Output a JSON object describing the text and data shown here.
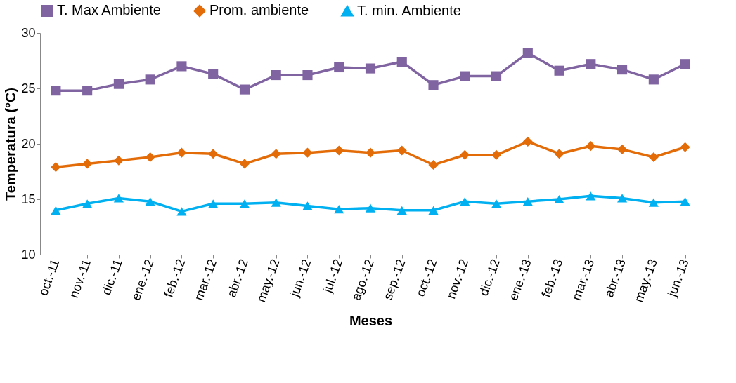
{
  "chart_data": {
    "type": "line",
    "xlabel": "Meses",
    "ylabel": "Temperatura (°C)",
    "categories": [
      "oct.-11",
      "nov.-11",
      "dic.-11",
      "ene.-12",
      "feb.-12",
      "mar.-12",
      "abr.-12",
      "may.-12",
      "jun.-12",
      "jul.-12",
      "ago.-12",
      "sep.-12",
      "oct.-12",
      "nov.-12",
      "dic.-12",
      "ene.-13",
      "feb.-13",
      "mar.-13",
      "abr.-13",
      "may.-13",
      "jun.-13"
    ],
    "series": [
      {
        "name": "T. Max Ambiente",
        "color": "#8064a2",
        "marker": "square",
        "values": [
          24.8,
          24.8,
          25.4,
          25.8,
          27.0,
          26.3,
          24.9,
          26.2,
          26.2,
          26.9,
          26.8,
          27.4,
          25.3,
          26.1,
          26.1,
          28.2,
          26.6,
          27.2,
          26.7,
          25.8,
          27.2
        ]
      },
      {
        "name": "Prom. ambiente",
        "color": "#e36c09",
        "marker": "diamond",
        "values": [
          17.9,
          18.2,
          18.5,
          18.8,
          19.2,
          19.1,
          18.2,
          19.1,
          19.2,
          19.4,
          19.2,
          19.4,
          18.1,
          19.0,
          19.0,
          20.2,
          19.1,
          19.8,
          19.5,
          18.8,
          19.7
        ]
      },
      {
        "name": "T. min. Ambiente",
        "color": "#00b0f0",
        "marker": "triangle",
        "values": [
          14.0,
          14.6,
          15.1,
          14.8,
          13.9,
          14.6,
          14.6,
          14.7,
          14.4,
          14.1,
          14.2,
          14.0,
          14.0,
          14.8,
          14.6,
          14.8,
          15.0,
          15.3,
          15.1,
          14.7,
          14.8
        ]
      }
    ],
    "ylim": [
      10,
      30
    ],
    "yticks": [
      10,
      15,
      20,
      25,
      30
    ],
    "grid": false,
    "legend": "top",
    "line_style": "solid"
  }
}
